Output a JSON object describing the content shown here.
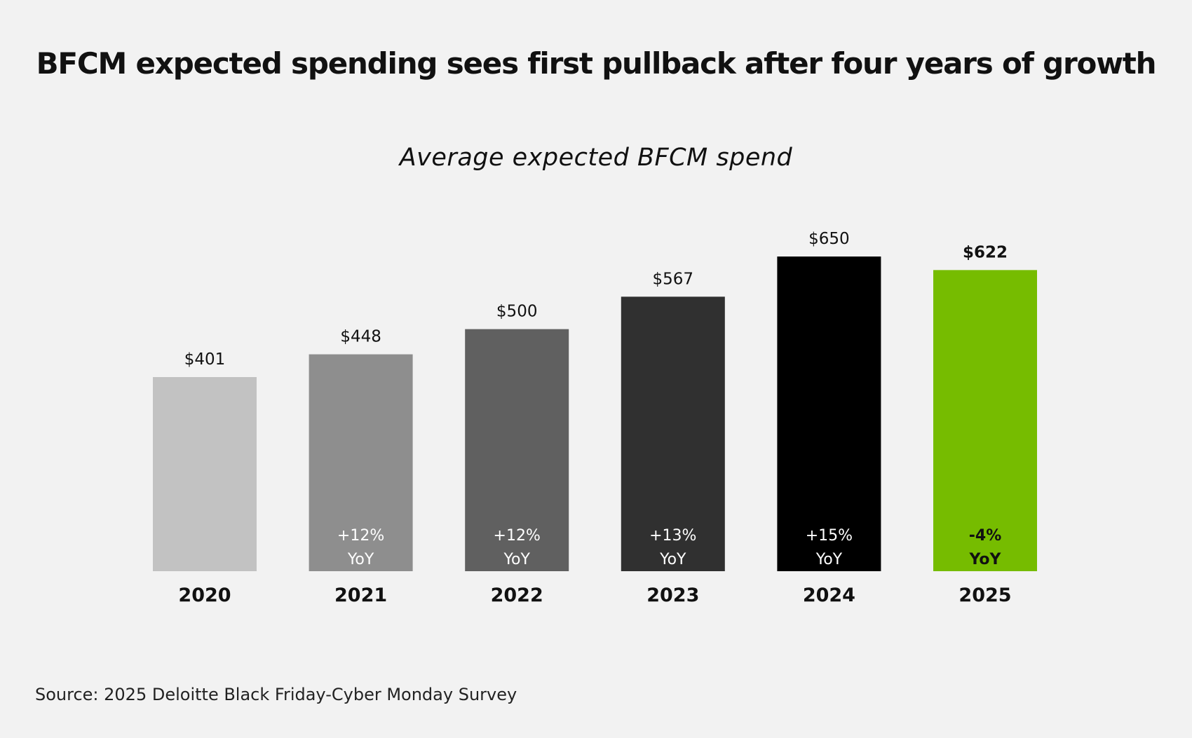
{
  "header": {
    "title": "BFCM expected spending sees first pullback after four years of growth"
  },
  "chart_data": {
    "type": "bar",
    "title": "BFCM expected spending sees first pullback after four years of growth",
    "subtitle": "Average expected BFCM spend",
    "categories": [
      "2020",
      "2021",
      "2022",
      "2023",
      "2024",
      "2025"
    ],
    "values": [
      401,
      448,
      500,
      567,
      650,
      622
    ],
    "value_labels": [
      "$401",
      "$448",
      "$500",
      "$567",
      "$650",
      "$622"
    ],
    "yoy_labels": [
      "",
      "+12%",
      "+12%",
      "+13%",
      "+15%",
      "-4%"
    ],
    "yoy_suffix": "YoY",
    "bar_colors": [
      "#c2c2c2",
      "#8e8e8e",
      "#606060",
      "#303030",
      "#000000",
      "#76bc00"
    ],
    "highlight_index": 5,
    "xlabel": "",
    "ylabel": "",
    "ylim": [
      0,
      650
    ],
    "grid": false,
    "legend": "none"
  },
  "footer": {
    "source": "Source: 2025 Deloitte Black Friday-Cyber Monday Survey"
  }
}
